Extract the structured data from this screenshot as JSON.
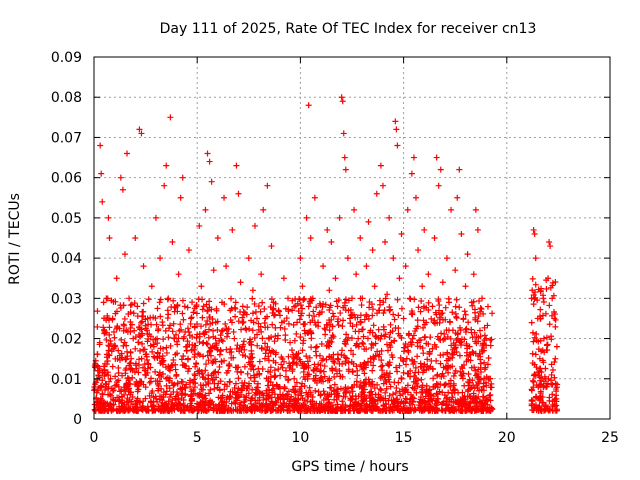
{
  "chart_data": {
    "type": "scatter",
    "title": "Day 111 of 2025, Rate Of TEC Index for receiver cn13",
    "xlabel": "GPS time / hours",
    "ylabel": "ROTI / TECUs",
    "xlim": [
      0,
      25
    ],
    "ylim": [
      0,
      0.09
    ],
    "x_ticks": [
      "0",
      "5",
      "10",
      "15",
      "20",
      "25"
    ],
    "y_ticks": [
      "0",
      "0.01",
      "0.02",
      "0.03",
      "0.04",
      "0.05",
      "0.06",
      "0.07",
      "0.08",
      "0.09"
    ],
    "grid": true,
    "marker": "+",
    "color": "#ff0000",
    "series": [
      {
        "values_description_free": true,
        "points": [
          [
            0.1,
            0.005
          ],
          [
            0.2,
            0.012
          ],
          [
            0.3,
            0.068
          ],
          [
            0.35,
            0.061
          ],
          [
            0.4,
            0.054
          ],
          [
            0.5,
            0.022
          ],
          [
            0.6,
            0.03
          ],
          [
            0.7,
            0.05
          ],
          [
            0.75,
            0.045
          ],
          [
            0.8,
            0.01
          ],
          [
            0.9,
            0.025
          ],
          [
            1.0,
            0.018
          ],
          [
            1.1,
            0.035
          ],
          [
            1.2,
            0.008
          ],
          [
            1.3,
            0.06
          ],
          [
            1.4,
            0.057
          ],
          [
            1.5,
            0.041
          ],
          [
            1.6,
            0.066
          ],
          [
            1.7,
            0.03
          ],
          [
            1.8,
            0.015
          ],
          [
            1.9,
            0.02
          ],
          [
            2.0,
            0.045
          ],
          [
            2.1,
            0.028
          ],
          [
            2.2,
            0.072
          ],
          [
            2.3,
            0.071
          ],
          [
            2.4,
            0.038
          ],
          [
            2.5,
            0.012
          ],
          [
            2.6,
            0.025
          ],
          [
            2.7,
            0.009
          ],
          [
            2.8,
            0.033
          ],
          [
            2.9,
            0.018
          ],
          [
            3.0,
            0.05
          ],
          [
            3.1,
            0.022
          ],
          [
            3.2,
            0.04
          ],
          [
            3.3,
            0.015
          ],
          [
            3.4,
            0.058
          ],
          [
            3.5,
            0.063
          ],
          [
            3.6,
            0.03
          ],
          [
            3.7,
            0.075
          ],
          [
            3.8,
            0.044
          ],
          [
            3.9,
            0.02
          ],
          [
            4.0,
            0.011
          ],
          [
            4.1,
            0.036
          ],
          [
            4.2,
            0.055
          ],
          [
            4.3,
            0.06
          ],
          [
            4.4,
            0.028
          ],
          [
            4.5,
            0.017
          ],
          [
            4.6,
            0.042
          ],
          [
            4.7,
            0.025
          ],
          [
            4.8,
            0.009
          ],
          [
            4.9,
            0.013
          ],
          [
            5.0,
            0.021
          ],
          [
            5.1,
            0.048
          ],
          [
            5.2,
            0.033
          ],
          [
            5.3,
            0.019
          ],
          [
            5.4,
            0.052
          ],
          [
            5.5,
            0.066
          ],
          [
            5.6,
            0.064
          ],
          [
            5.7,
            0.059
          ],
          [
            5.8,
            0.037
          ],
          [
            5.9,
            0.024
          ],
          [
            6.0,
            0.045
          ],
          [
            6.1,
            0.016
          ],
          [
            6.2,
            0.029
          ],
          [
            6.3,
            0.055
          ],
          [
            6.4,
            0.038
          ],
          [
            6.5,
            0.012
          ],
          [
            6.6,
            0.027
          ],
          [
            6.7,
            0.047
          ],
          [
            6.8,
            0.02
          ],
          [
            6.9,
            0.063
          ],
          [
            7.0,
            0.056
          ],
          [
            7.1,
            0.034
          ],
          [
            7.2,
            0.018
          ],
          [
            7.3,
            0.009
          ],
          [
            7.4,
            0.026
          ],
          [
            7.5,
            0.04
          ],
          [
            7.6,
            0.015
          ],
          [
            7.7,
            0.032
          ],
          [
            7.8,
            0.048
          ],
          [
            7.9,
            0.021
          ],
          [
            8.0,
            0.011
          ],
          [
            8.1,
            0.036
          ],
          [
            8.2,
            0.052
          ],
          [
            8.3,
            0.025
          ],
          [
            8.4,
            0.058
          ],
          [
            8.5,
            0.017
          ],
          [
            8.6,
            0.043
          ],
          [
            8.7,
            0.029
          ],
          [
            8.8,
            0.014
          ],
          [
            8.9,
            0.02
          ],
          [
            9.0,
            0.008
          ],
          [
            9.1,
            0.024
          ],
          [
            9.2,
            0.035
          ],
          [
            9.3,
            0.012
          ],
          [
            9.4,
            0.03
          ],
          [
            9.5,
            0.019
          ],
          [
            9.6,
            0.027
          ],
          [
            9.7,
            0.01
          ],
          [
            9.8,
            0.016
          ],
          [
            9.9,
            0.005
          ],
          [
            10.0,
            0.04
          ],
          [
            10.1,
            0.033
          ],
          [
            10.2,
            0.022
          ],
          [
            10.3,
            0.05
          ],
          [
            10.4,
            0.078
          ],
          [
            10.5,
            0.045
          ],
          [
            10.6,
            0.03
          ],
          [
            10.7,
            0.055
          ],
          [
            10.8,
            0.018
          ],
          [
            10.9,
            0.026
          ],
          [
            11.0,
            0.012
          ],
          [
            11.1,
            0.038
          ],
          [
            11.2,
            0.021
          ],
          [
            11.3,
            0.047
          ],
          [
            11.4,
            0.032
          ],
          [
            11.5,
            0.044
          ],
          [
            11.6,
            0.016
          ],
          [
            11.7,
            0.035
          ],
          [
            11.8,
            0.028
          ],
          [
            11.9,
            0.05
          ],
          [
            12.0,
            0.08
          ],
          [
            12.05,
            0.079
          ],
          [
            12.1,
            0.071
          ],
          [
            12.15,
            0.065
          ],
          [
            12.2,
            0.062
          ],
          [
            12.3,
            0.04
          ],
          [
            12.4,
            0.025
          ],
          [
            12.5,
            0.03
          ],
          [
            12.6,
            0.052
          ],
          [
            12.7,
            0.036
          ],
          [
            12.8,
            0.02
          ],
          [
            12.9,
            0.045
          ],
          [
            13.0,
            0.03
          ],
          [
            13.1,
            0.014
          ],
          [
            13.2,
            0.038
          ],
          [
            13.3,
            0.049
          ],
          [
            13.4,
            0.022
          ],
          [
            13.5,
            0.042
          ],
          [
            13.6,
            0.033
          ],
          [
            13.7,
            0.056
          ],
          [
            13.8,
            0.027
          ],
          [
            13.9,
            0.063
          ],
          [
            14.0,
            0.058
          ],
          [
            14.1,
            0.044
          ],
          [
            14.2,
            0.031
          ],
          [
            14.3,
            0.05
          ],
          [
            14.4,
            0.019
          ],
          [
            14.5,
            0.04
          ],
          [
            14.6,
            0.074
          ],
          [
            14.65,
            0.072
          ],
          [
            14.7,
            0.068
          ],
          [
            14.8,
            0.035
          ],
          [
            14.9,
            0.046
          ],
          [
            15.0,
            0.025
          ],
          [
            15.1,
            0.038
          ],
          [
            15.2,
            0.052
          ],
          [
            15.3,
            0.03
          ],
          [
            15.4,
            0.061
          ],
          [
            15.5,
            0.065
          ],
          [
            15.6,
            0.055
          ],
          [
            15.7,
            0.042
          ],
          [
            15.8,
            0.018
          ],
          [
            15.9,
            0.033
          ],
          [
            16.0,
            0.047
          ],
          [
            16.1,
            0.024
          ],
          [
            16.2,
            0.036
          ],
          [
            16.3,
            0.013
          ],
          [
            16.4,
            0.028
          ],
          [
            16.5,
            0.045
          ],
          [
            16.6,
            0.065
          ],
          [
            16.7,
            0.058
          ],
          [
            16.8,
            0.062
          ],
          [
            16.9,
            0.034
          ],
          [
            17.0,
            0.02
          ],
          [
            17.1,
            0.04
          ],
          [
            17.2,
            0.029
          ],
          [
            17.3,
            0.052
          ],
          [
            17.4,
            0.016
          ],
          [
            17.5,
            0.037
          ],
          [
            17.6,
            0.055
          ],
          [
            17.7,
            0.062
          ],
          [
            17.8,
            0.046
          ],
          [
            17.9,
            0.025
          ],
          [
            18.0,
            0.033
          ],
          [
            18.1,
            0.041
          ],
          [
            18.2,
            0.018
          ],
          [
            18.3,
            0.029
          ],
          [
            18.4,
            0.036
          ],
          [
            18.5,
            0.052
          ],
          [
            18.6,
            0.047
          ],
          [
            18.7,
            0.022
          ],
          [
            18.8,
            0.03
          ],
          [
            18.9,
            0.014
          ],
          [
            19.0,
            0.02
          ],
          [
            19.1,
            0.01
          ],
          [
            19.2,
            0.006
          ],
          [
            21.2,
            0.03
          ],
          [
            21.3,
            0.047
          ],
          [
            21.35,
            0.046
          ],
          [
            21.4,
            0.04
          ],
          [
            21.5,
            0.025
          ],
          [
            21.6,
            0.015
          ],
          [
            21.7,
            0.01
          ],
          [
            21.8,
            0.02
          ],
          [
            21.9,
            0.008
          ],
          [
            22.0,
            0.035
          ],
          [
            22.05,
            0.044
          ],
          [
            22.1,
            0.043
          ],
          [
            22.2,
            0.03
          ],
          [
            22.3,
            0.025
          ],
          [
            22.35,
            0.015
          ],
          [
            22.4,
            0.005
          ]
        ]
      }
    ],
    "dense_bands": [
      {
        "x_start": 0.0,
        "x_end": 19.3,
        "y_min": 0.002,
        "y_max": 0.03
      },
      {
        "x_start": 21.2,
        "x_end": 22.45,
        "y_min": 0.002,
        "y_max": 0.035
      }
    ]
  }
}
